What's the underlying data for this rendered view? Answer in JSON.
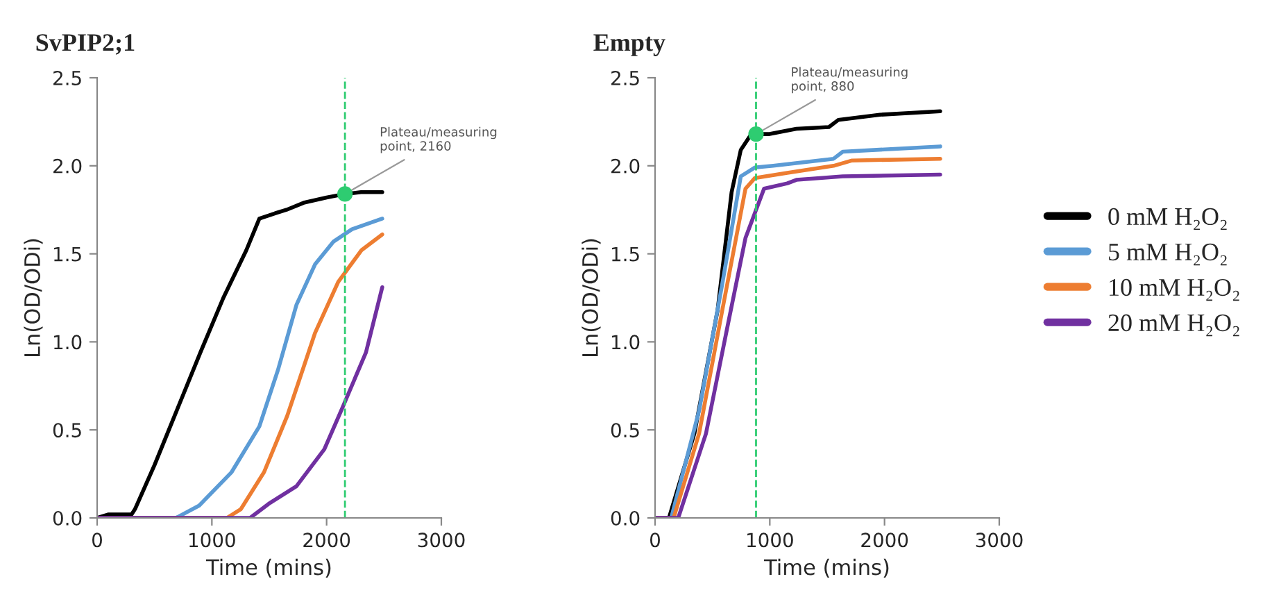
{
  "chart_data": [
    {
      "type": "line",
      "title": "SvPIP2;1",
      "xlabel": "Time (mins)",
      "ylabel": "Ln(OD/ODi)",
      "xlim": [
        0,
        3000
      ],
      "xticks": [
        0,
        1000,
        2000,
        3000
      ],
      "ylim": [
        0,
        2.5
      ],
      "yticks": [
        {
          "value": 0,
          "label": "0.0"
        },
        {
          "value": 0.5,
          "label": "0.5"
        },
        {
          "value": 1,
          "label": "1.0"
        },
        {
          "value": 1.5,
          "label": "1.5"
        },
        {
          "value": 2,
          "label": "2.0"
        },
        {
          "value": 2.5,
          "label": "2.5"
        }
      ],
      "grid": false,
      "legend": false,
      "marker": "none",
      "line_style": "solid",
      "series": [
        {
          "color": "#000000",
          "x": [
            0,
            100,
            300,
            330,
            500,
            700,
            900,
            1100,
            1300,
            1414,
            1550,
            1650,
            1800,
            2000,
            2160,
            2300,
            2485
          ],
          "values": [
            0,
            0.02,
            0.02,
            0.05,
            0.3,
            0.62,
            0.94,
            1.25,
            1.52,
            1.7,
            1.73,
            1.75,
            1.79,
            1.82,
            1.84,
            1.85,
            1.85
          ]
        },
        {
          "color": "#5b9bd5",
          "x": [
            0,
            687,
            889,
            1172,
            1414,
            1576,
            1737,
            1899,
            2061,
            2222,
            2485
          ],
          "values": [
            0,
            0,
            0.07,
            0.26,
            0.52,
            0.84,
            1.21,
            1.44,
            1.57,
            1.64,
            1.7
          ]
        },
        {
          "color": "#ed7d31",
          "x": [
            0,
            1131,
            1253,
            1455,
            1657,
            1899,
            2101,
            2303,
            2485
          ],
          "values": [
            0,
            0,
            0.05,
            0.26,
            0.58,
            1.05,
            1.34,
            1.52,
            1.61
          ]
        },
        {
          "color": "#7030a0",
          "x": [
            0,
            1333,
            1495,
            1737,
            1980,
            2141,
            2343,
            2485
          ],
          "values": [
            0,
            0,
            0.08,
            0.18,
            0.39,
            0.63,
            0.94,
            1.31
          ]
        }
      ],
      "ref_lines": [
        {
          "axis": "x",
          "value": 2160,
          "color": "#2ecc71",
          "line_style": "dashed"
        }
      ],
      "annotations": [
        {
          "text": "Plateau/measuring\npoint, 2160",
          "x": 2160,
          "y": 1.84
        }
      ]
    },
    {
      "type": "line",
      "title": "Empty",
      "xlabel": "Time (mins)",
      "ylabel": "Ln(OD/ODi)",
      "xlim": [
        0,
        3000
      ],
      "xticks": [
        0,
        1000,
        2000,
        3000
      ],
      "ylim": [
        0,
        2.5
      ],
      "yticks": [
        {
          "value": 0,
          "label": "0.0"
        },
        {
          "value": 0.5,
          "label": "0.5"
        },
        {
          "value": 1,
          "label": "1.0"
        },
        {
          "value": 1.5,
          "label": "1.5"
        },
        {
          "value": 2,
          "label": "2.0"
        },
        {
          "value": 2.5,
          "label": "2.5"
        }
      ],
      "grid": false,
      "legend": "right",
      "marker": "none",
      "line_style": "solid",
      "series": [
        {
          "name": "0 mM H₂O₂",
          "color": "#000000",
          "x": [
            0,
            121,
            343,
            545,
            667,
            747,
            828,
            880,
            990,
            1232,
            1515,
            1596,
            1960,
            2485
          ],
          "values": [
            0,
            0,
            0.48,
            1.18,
            1.85,
            2.09,
            2.17,
            2.18,
            2.18,
            2.21,
            2.22,
            2.26,
            2.29,
            2.31
          ]
        },
        {
          "name": "5 mM H₂O₂",
          "color": "#5b9bd5",
          "x": [
            0,
            141,
            384,
            586,
            747,
            869,
            1030,
            1556,
            1636,
            2485
          ],
          "values": [
            0,
            0,
            0.61,
            1.33,
            1.94,
            1.99,
            2.0,
            2.04,
            2.08,
            2.11
          ]
        },
        {
          "name": "10 mM H₂O₂",
          "color": "#ed7d31",
          "x": [
            0,
            162,
            384,
            586,
            788,
            869,
            1152,
            1556,
            1717,
            2485
          ],
          "values": [
            0,
            0,
            0.48,
            1.18,
            1.87,
            1.93,
            1.96,
            2.0,
            2.03,
            2.04
          ]
        },
        {
          "name": "20 mM H₂O₂",
          "color": "#7030a0",
          "x": [
            0,
            202,
            444,
            626,
            788,
            950,
            1152,
            1232,
            1636,
            2485
          ],
          "values": [
            0,
            0,
            0.48,
            1.07,
            1.59,
            1.87,
            1.9,
            1.92,
            1.94,
            1.95
          ]
        }
      ],
      "ref_lines": [
        {
          "axis": "x",
          "value": 880,
          "color": "#2ecc71",
          "line_style": "dashed"
        }
      ],
      "annotations": [
        {
          "text": "Plateau/measuring\npoint, 880",
          "x": 880,
          "y": 2.18
        }
      ]
    }
  ]
}
